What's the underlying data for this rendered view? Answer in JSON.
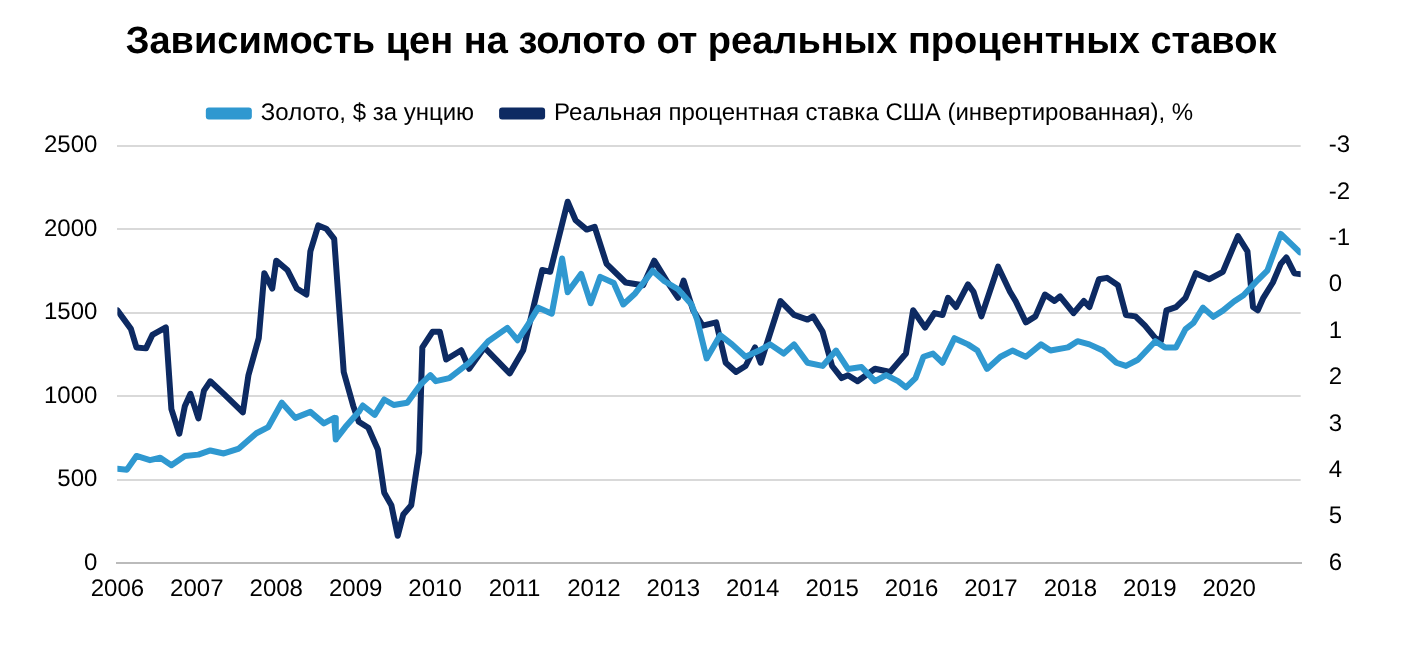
{
  "chart_data": {
    "type": "line",
    "title": "Зависимость цен на золото от реальных процентных ставок",
    "xlim": [
      2006,
      2020.9
    ],
    "xticks": [
      2006,
      2007,
      2008,
      2009,
      2010,
      2011,
      2012,
      2013,
      2014,
      2015,
      2016,
      2017,
      2018,
      2019,
      2020
    ],
    "ylim": [
      0,
      2500
    ],
    "yticks": [
      0,
      500,
      1000,
      1500,
      2000,
      2500
    ],
    "y2lim": [
      6,
      -3
    ],
    "y2ticks": [
      -3,
      -2,
      -1,
      0,
      1,
      2,
      3,
      4,
      5,
      6
    ],
    "grid": "y",
    "legend": "top",
    "marker": "none",
    "line_style": "solid",
    "series": [
      {
        "name": "Золото, $ за унцию",
        "color": "#2f98d0",
        "x": [
          2006.0,
          2006.12,
          2006.24,
          2006.41,
          2006.54,
          2006.68,
          2006.85,
          2007.02,
          2007.17,
          2007.34,
          2007.53,
          2007.75,
          2007.9,
          2008.07,
          2008.24,
          2008.43,
          2008.6,
          2008.73,
          2008.75,
          2008.87,
          2009.04,
          2009.09,
          2009.24,
          2009.36,
          2009.48,
          2009.65,
          2009.82,
          2009.94,
          2010.01,
          2010.18,
          2010.43,
          2010.67,
          2010.91,
          2011.04,
          2011.16,
          2011.3,
          2011.47,
          2011.6,
          2011.67,
          2011.84,
          2011.96,
          2012.08,
          2012.25,
          2012.37,
          2012.52,
          2012.74,
          2012.89,
          2013.06,
          2013.23,
          2013.3,
          2013.42,
          2013.59,
          2013.74,
          2013.91,
          2014.08,
          2014.22,
          2014.39,
          2014.52,
          2014.69,
          2014.88,
          2015.05,
          2015.2,
          2015.37,
          2015.54,
          2015.68,
          2015.83,
          2015.93,
          2016.05,
          2016.15,
          2016.27,
          2016.39,
          2016.54,
          2016.71,
          2016.83,
          2016.95,
          2017.12,
          2017.27,
          2017.44,
          2017.63,
          2017.75,
          2017.97,
          2018.09,
          2018.24,
          2018.41,
          2018.58,
          2018.7,
          2018.85,
          2019.07,
          2019.19,
          2019.33,
          2019.45,
          2019.55,
          2019.67,
          2019.8,
          2019.92,
          2020.06,
          2020.18,
          2020.36,
          2020.48,
          2020.65,
          2020.77,
          2020.89
        ],
        "values": [
          565,
          560,
          642,
          617,
          631,
          587,
          642,
          650,
          675,
          657,
          686,
          778,
          815,
          961,
          870,
          906,
          837,
          870,
          741,
          815,
          906,
          944,
          888,
          980,
          947,
          961,
          1071,
          1126,
          1090,
          1108,
          1200,
          1329,
          1409,
          1335,
          1420,
          1530,
          1494,
          1824,
          1622,
          1732,
          1556,
          1714,
          1677,
          1549,
          1615,
          1751,
          1688,
          1640,
          1549,
          1457,
          1226,
          1365,
          1310,
          1236,
          1273,
          1310,
          1255,
          1310,
          1200,
          1181,
          1273,
          1163,
          1174,
          1090,
          1126,
          1090,
          1053,
          1108,
          1236,
          1255,
          1200,
          1347,
          1310,
          1273,
          1163,
          1236,
          1273,
          1236,
          1310,
          1273,
          1292,
          1329,
          1310,
          1273,
          1200,
          1181,
          1218,
          1329,
          1292,
          1292,
          1402,
          1439,
          1530,
          1475,
          1512,
          1567,
          1604,
          1695,
          1751,
          1971,
          1916,
          1861
        ]
      },
      {
        "name": "Реальная процентная ставка США (инвертированная), %",
        "color": "#0d2a62",
        "axis": "y2",
        "x": [
          2006.0,
          2006.17,
          2006.24,
          2006.36,
          2006.44,
          2006.61,
          2006.68,
          2006.78,
          2006.85,
          2006.92,
          2007.02,
          2007.09,
          2007.17,
          2007.34,
          2007.46,
          2007.58,
          2007.65,
          2007.78,
          2007.85,
          2007.95,
          2008.0,
          2008.14,
          2008.26,
          2008.38,
          2008.43,
          2008.53,
          2008.63,
          2008.73,
          2008.8,
          2008.85,
          2008.97,
          2009.04,
          2009.16,
          2009.28,
          2009.36,
          2009.45,
          2009.53,
          2009.6,
          2009.7,
          2009.8,
          2009.84,
          2009.97,
          2010.06,
          2010.14,
          2010.33,
          2010.43,
          2010.62,
          2010.94,
          2011.11,
          2011.23,
          2011.35,
          2011.45,
          2011.67,
          2011.77,
          2011.91,
          2012.01,
          2012.16,
          2012.4,
          2012.62,
          2012.76,
          2012.93,
          2013.06,
          2013.13,
          2013.25,
          2013.37,
          2013.54,
          2013.66,
          2013.79,
          2013.91,
          2014.03,
          2014.1,
          2014.35,
          2014.52,
          2014.69,
          2014.76,
          2014.88,
          2015.0,
          2015.12,
          2015.2,
          2015.32,
          2015.54,
          2015.73,
          2015.93,
          2016.02,
          2016.17,
          2016.29,
          2016.39,
          2016.46,
          2016.56,
          2016.71,
          2016.78,
          2016.88,
          2017.09,
          2017.24,
          2017.31,
          2017.44,
          2017.56,
          2017.68,
          2017.8,
          2017.87,
          2018.04,
          2018.17,
          2018.24,
          2018.36,
          2018.46,
          2018.6,
          2018.7,
          2018.82,
          2018.94,
          2019.07,
          2019.14,
          2019.21,
          2019.33,
          2019.45,
          2019.58,
          2019.75,
          2019.92,
          2020.11,
          2020.23,
          2020.3,
          2020.36,
          2020.43,
          2020.55,
          2020.65,
          2020.72,
          2020.82,
          2020.89
        ],
        "values": [
          0.55,
          0.95,
          1.35,
          1.37,
          1.08,
          0.92,
          2.68,
          3.21,
          2.61,
          2.35,
          2.88,
          2.28,
          2.08,
          2.35,
          2.55,
          2.75,
          1.95,
          1.15,
          -0.25,
          0.08,
          -0.52,
          -0.32,
          0.08,
          0.21,
          -0.72,
          -1.28,
          -1.21,
          -0.99,
          0.68,
          1.88,
          2.61,
          2.95,
          3.08,
          3.55,
          4.48,
          4.75,
          5.41,
          4.95,
          4.75,
          3.61,
          1.35,
          1.01,
          1.01,
          1.61,
          1.41,
          1.81,
          1.35,
          1.91,
          1.41,
          0.55,
          -0.32,
          -0.28,
          -1.79,
          -1.39,
          -1.19,
          -1.25,
          -0.45,
          -0.05,
          0.01,
          -0.52,
          -0.05,
          0.28,
          -0.09,
          0.55,
          0.88,
          0.81,
          1.68,
          1.88,
          1.75,
          1.35,
          1.68,
          0.35,
          0.65,
          0.75,
          0.68,
          1.01,
          1.75,
          2.01,
          1.95,
          2.08,
          1.81,
          1.88,
          1.48,
          0.55,
          0.92,
          0.61,
          0.65,
          0.28,
          0.48,
          -0.01,
          0.15,
          0.68,
          -0.39,
          0.15,
          0.35,
          0.81,
          0.68,
          0.21,
          0.35,
          0.25,
          0.61,
          0.35,
          0.48,
          -0.12,
          -0.15,
          0.01,
          0.65,
          0.68,
          0.88,
          1.15,
          1.21,
          0.55,
          0.48,
          0.28,
          -0.25,
          -0.12,
          -0.28,
          -1.05,
          -0.72,
          0.48,
          0.55,
          0.28,
          -0.05,
          -0.45,
          -0.59,
          -0.25,
          -0.23
        ]
      }
    ]
  }
}
